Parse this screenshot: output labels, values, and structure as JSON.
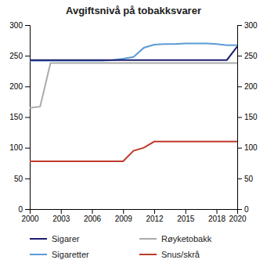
{
  "chart_data": {
    "type": "line",
    "title": "Avgiftsnivå på tobakksvarer",
    "x": [
      2000,
      2001,
      2002,
      2003,
      2004,
      2005,
      2006,
      2007,
      2008,
      2009,
      2010,
      2011,
      2012,
      2013,
      2014,
      2015,
      2016,
      2017,
      2018,
      2019,
      2020
    ],
    "series": [
      {
        "name": "Sigarer",
        "color": "#1c1c6e",
        "values": [
          243,
          243,
          243,
          243,
          243,
          243,
          243,
          243,
          243,
          243,
          243,
          243,
          243,
          243,
          243,
          243,
          243,
          243,
          243,
          243,
          265
        ]
      },
      {
        "name": "Røyketobakk",
        "color": "#aaaaaa",
        "values": [
          165,
          167,
          238,
          238,
          238,
          238,
          238,
          238,
          238,
          238,
          238,
          238,
          238,
          238,
          238,
          238,
          238,
          238,
          238,
          238,
          238
        ]
      },
      {
        "name": "Sigaretter",
        "color": "#5b9bd5",
        "values": [
          242,
          242,
          242,
          242,
          242,
          242,
          242,
          242,
          243,
          245,
          248,
          263,
          268,
          269,
          269,
          270,
          270,
          270,
          269,
          267,
          267
        ]
      },
      {
        "name": "Snus/skrå",
        "color": "#c0392b",
        "values": [
          78,
          78,
          78,
          78,
          78,
          78,
          78,
          78,
          78,
          78,
          95,
          100,
          110,
          110,
          110,
          110,
          110,
          110,
          110,
          110,
          110
        ]
      }
    ],
    "xlim": [
      2000,
      2020
    ],
    "xticks": [
      2000,
      2003,
      2006,
      2009,
      2012,
      2015,
      2018,
      2020
    ],
    "ylim": [
      0,
      300
    ],
    "yticks": [
      0,
      50,
      100,
      150,
      200,
      250,
      300
    ],
    "y2lim": [
      0,
      300
    ],
    "y2ticks": [
      0,
      50,
      100,
      150,
      200,
      250,
      300
    ],
    "grid": false,
    "legend": "bottom"
  }
}
